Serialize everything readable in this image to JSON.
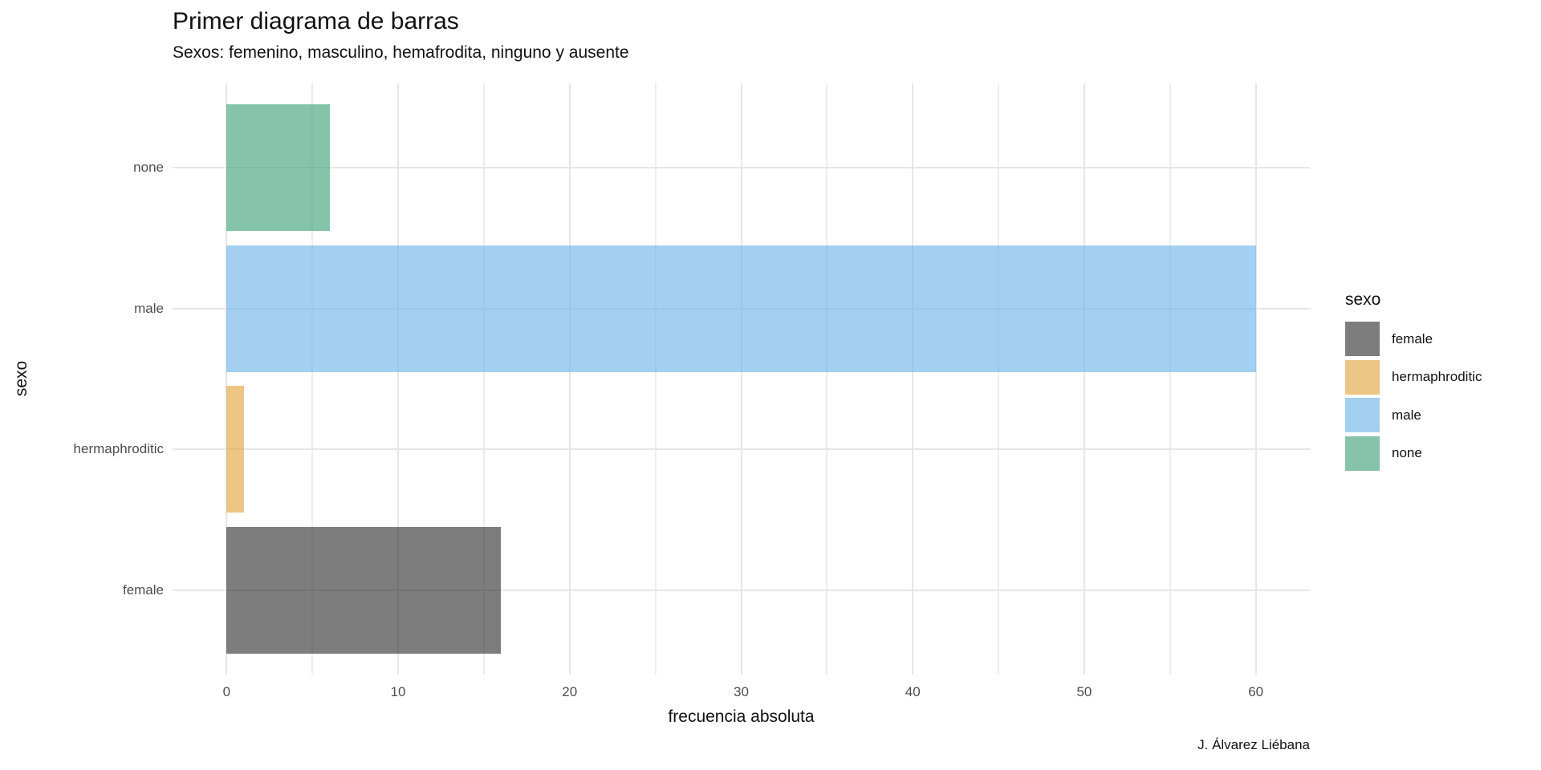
{
  "header": {
    "title": "Primer diagrama de barras",
    "subtitle": "Sexos: femenino, masculino, hemafrodita, ninguno y ausente",
    "caption": "J. Álvarez Liébana"
  },
  "axes": {
    "x_title": "frecuencia absoluta",
    "y_title": "sexo"
  },
  "legend": {
    "title": "sexo",
    "position": "right",
    "items": [
      {
        "label": "female",
        "color": "#7e7e7e",
        "fill_rgba": "rgba(56,56,56,0.65)"
      },
      {
        "label": "hermaphroditic",
        "color": "#edc685",
        "fill_rgba": "rgba(227,167,67,0.65)"
      },
      {
        "label": "male",
        "color": "#a3cff0",
        "fill_rgba": "rgba(114,181,232,0.65)"
      },
      {
        "label": "none",
        "color": "#85c4ab",
        "fill_rgba": "rgba(67,164,126,0.65)"
      }
    ]
  },
  "chart_data": {
    "type": "bar",
    "orientation": "horizontal",
    "title": "Primer diagrama de barras",
    "subtitle": "Sexos: femenino, masculino, hemafrodita, ninguno y ausente",
    "caption": "J. Álvarez Liébana",
    "xlabel": "frecuencia absoluta",
    "ylabel": "sexo",
    "categories_top_to_bottom": [
      "none",
      "male",
      "hermaphroditic",
      "female"
    ],
    "values": [
      6,
      60,
      1,
      16
    ],
    "series": [
      {
        "name": "none",
        "value": 6,
        "fill_rgba": "rgba(67,164,126,0.65)",
        "color": "#85c4ab"
      },
      {
        "name": "male",
        "value": 60,
        "fill_rgba": "rgba(114,181,232,0.65)",
        "color": "#a3cff0"
      },
      {
        "name": "hermaphroditic",
        "value": 1,
        "fill_rgba": "rgba(227,167,67,0.65)",
        "color": "#edc685"
      },
      {
        "name": "female",
        "value": 16,
        "fill_rgba": "rgba(56,56,56,0.65)",
        "color": "#7e7e7e"
      }
    ],
    "x_ticks": [
      0,
      10,
      20,
      30,
      40,
      50,
      60
    ],
    "x_minor_ticks": [
      5,
      15,
      25,
      35,
      45,
      55
    ],
    "xlim": [
      -3.15,
      63.15
    ],
    "grid": true,
    "grid_major_color": "#e6e6e6",
    "grid_minor_color": "#ededed",
    "background": "#ffffff",
    "legend_position": "right"
  }
}
